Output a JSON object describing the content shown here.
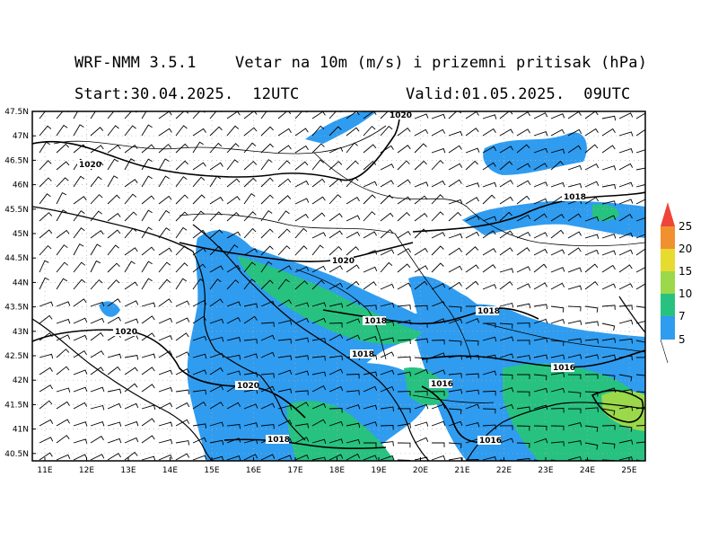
{
  "header": {
    "model": "WRF-NMM 3.5.1",
    "description": "Vetar na 10m (m/s) i prizemni pritisak (hPa)",
    "start": "Start:30.04.2025.  12UTC",
    "valid": "Valid:01.05.2025.  09UTC"
  },
  "axes": {
    "lat_labels": [
      "47.5N",
      "47N",
      "46.5N",
      "46N",
      "45.5N",
      "45N",
      "44.5N",
      "44N",
      "43.5N",
      "43N",
      "42.5N",
      "42N",
      "41.5N",
      "41N",
      "40.5N"
    ],
    "lon_labels": [
      "11E",
      "12E",
      "13E",
      "14E",
      "15E",
      "16E",
      "17E",
      "18E",
      "19E",
      "20E",
      "21E",
      "22E",
      "23E",
      "24E",
      "25E"
    ]
  },
  "colorbar": {
    "labels": [
      "5",
      "7",
      "10",
      "15",
      "20",
      "25"
    ],
    "colors": [
      "#2f9cf0",
      "#27c27f",
      "#9bd84a",
      "#e6db2e",
      "#f0902f",
      "#f0433a"
    ]
  },
  "isobars": [
    {
      "label": "1020"
    },
    {
      "label": "1020"
    },
    {
      "label": "1020"
    },
    {
      "label": "1020"
    },
    {
      "label": "1020"
    },
    {
      "label": "1018"
    },
    {
      "label": "1018"
    },
    {
      "label": "1018"
    },
    {
      "label": "1018"
    },
    {
      "label": "1018"
    },
    {
      "label": "1016"
    },
    {
      "label": "1016"
    },
    {
      "label": "1016"
    }
  ]
}
